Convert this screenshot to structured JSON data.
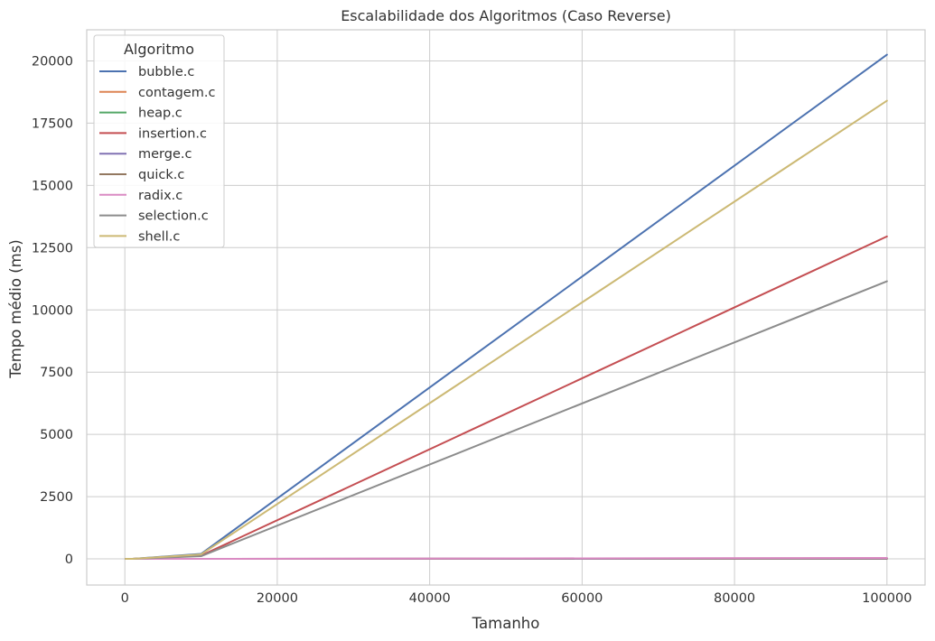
{
  "chart_data": {
    "type": "line",
    "title": "Escalabilidade dos Algoritmos (Caso Reverse)",
    "xlabel": "Tamanho",
    "ylabel": "Tempo médio (ms)",
    "x": [
      100,
      1000,
      10000,
      100000
    ],
    "xlim": [
      -5000,
      105000
    ],
    "ylim": [
      -1050,
      21250
    ],
    "xticks": [
      0,
      20000,
      40000,
      60000,
      80000,
      100000
    ],
    "xtick_labels": [
      "0",
      "20000",
      "40000",
      "60000",
      "80000",
      "100000"
    ],
    "yticks": [
      0,
      2500,
      5000,
      7500,
      10000,
      12500,
      15000,
      17500,
      20000
    ],
    "ytick_labels": [
      "0",
      "2500",
      "5000",
      "7500",
      "10000",
      "12500",
      "15000",
      "17500",
      "20000"
    ],
    "grid": true,
    "legend": {
      "title": "Algoritmo",
      "position": "top-left"
    },
    "series": [
      {
        "name": "bubble.c",
        "color": "#4c72b0",
        "values": [
          0.1,
          2,
          200,
          20250
        ]
      },
      {
        "name": "contagem.c",
        "color": "#dd8452",
        "values": [
          0,
          0,
          0.2,
          2
        ]
      },
      {
        "name": "heap.c",
        "color": "#55a868",
        "values": [
          0,
          0.1,
          1,
          14
        ]
      },
      {
        "name": "insertion.c",
        "color": "#c44e52",
        "values": [
          0.05,
          1.3,
          130,
          12950
        ]
      },
      {
        "name": "merge.c",
        "color": "#8172b3",
        "values": [
          0,
          0.1,
          1,
          12
        ]
      },
      {
        "name": "quick.c",
        "color": "#937860",
        "values": [
          0,
          0.1,
          1.5,
          30
        ]
      },
      {
        "name": "radix.c",
        "color": "#da8bc3",
        "values": [
          0,
          0.05,
          0.5,
          40
        ]
      },
      {
        "name": "selection.c",
        "color": "#8c8c8c",
        "values": [
          0.05,
          1.1,
          110,
          11150
        ]
      },
      {
        "name": "shell.c",
        "color": "#ccb974",
        "values": [
          0.1,
          1.8,
          180,
          18400
        ]
      }
    ]
  }
}
